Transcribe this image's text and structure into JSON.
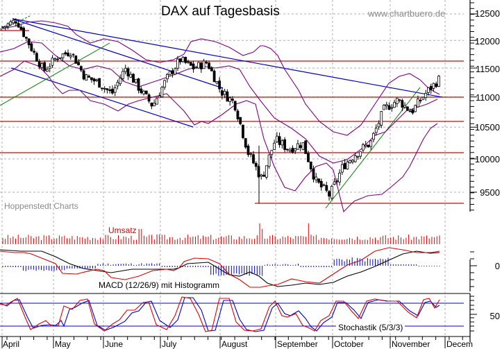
{
  "chart_data": {
    "type": "candlestick",
    "title": "DAX auf Tagesbasis",
    "watermark": "www.chartbuero.de",
    "source": "Hoppenstedt Charts",
    "xlabel": "",
    "ylabel": "",
    "grid": true,
    "price_axis": {
      "ticks": [
        12500,
        12000,
        11500,
        11000,
        10500,
        10000,
        9500
      ],
      "ylim": [
        9150,
        12700
      ],
      "scale": "log"
    },
    "months": [
      "April",
      "May",
      "June",
      "July",
      "August",
      "September",
      "October",
      "November",
      "Decem"
    ],
    "horizontal_levels": [
      11630,
      11000,
      10600,
      10100,
      9340
    ],
    "price_series_approx": {
      "description": "Approximate closing levels read off the chart, roughly weekly",
      "points": [
        {
          "month": "April",
          "close": 12250
        },
        {
          "month": "April",
          "close": 12380
        },
        {
          "month": "April",
          "close": 11900
        },
        {
          "month": "May",
          "close": 11450
        },
        {
          "month": "May",
          "close": 11700
        },
        {
          "month": "May",
          "close": 11800
        },
        {
          "month": "May",
          "close": 11350
        },
        {
          "month": "June",
          "close": 11250
        },
        {
          "month": "June",
          "close": 11050
        },
        {
          "month": "June",
          "close": 11500
        },
        {
          "month": "June",
          "close": 11150
        },
        {
          "month": "July",
          "close": 10850
        },
        {
          "month": "July",
          "close": 11300
        },
        {
          "month": "July",
          "close": 11650
        },
        {
          "month": "July",
          "close": 11500
        },
        {
          "month": "August",
          "close": 11600
        },
        {
          "month": "August",
          "close": 11100
        },
        {
          "month": "August",
          "close": 10900
        },
        {
          "month": "August",
          "close": 10100
        },
        {
          "month": "August",
          "close": 9700
        },
        {
          "month": "September",
          "close": 10300
        },
        {
          "month": "September",
          "close": 10150
        },
        {
          "month": "September",
          "close": 10250
        },
        {
          "month": "September",
          "close": 9650
        },
        {
          "month": "September",
          "close": 9450
        },
        {
          "month": "October",
          "close": 9900
        },
        {
          "month": "October",
          "close": 10100
        },
        {
          "month": "October",
          "close": 10250
        },
        {
          "month": "October",
          "close": 10800
        },
        {
          "month": "November",
          "close": 10950
        },
        {
          "month": "November",
          "close": 10750
        },
        {
          "month": "November",
          "close": 11050
        },
        {
          "month": "November",
          "close": 11300
        }
      ]
    },
    "indicators": [
      {
        "name": "Bollinger Bands",
        "color": "#800080"
      },
      {
        "name": "Umsatz",
        "type": "bar",
        "color": "#e00000"
      },
      {
        "name": "MACD (12/26/9) mit Histogramm",
        "lines": [
          "MACD",
          "Signal"
        ],
        "histogram": true,
        "axis_ticks": [
          0
        ]
      },
      {
        "name": "Stochastik (5/3/3)",
        "lines": [
          "%K",
          "%D"
        ],
        "axis_ticks": [
          50
        ],
        "bands": [
          80,
          20
        ]
      }
    ],
    "trendlines": [
      {
        "color": "#0000cc",
        "desc": "long downtrend from April high to November"
      },
      {
        "color": "#0000cc",
        "desc": "downtrend channel upper"
      },
      {
        "color": "#0000cc",
        "desc": "downtrend channel lower"
      },
      {
        "color": "#008000",
        "desc": "uptrend April-May"
      },
      {
        "color": "#008000",
        "desc": "uptrend from September low"
      }
    ]
  },
  "labels": {
    "title": "DAX auf Tagesbasis",
    "watermark": "www.chartbuero.de",
    "source": "Hoppenstedt Charts",
    "umsatz": "Umsatz",
    "macd": "MACD (12/26/9) mit Histogramm",
    "stoch": "Stochastik (5/3/3)",
    "macd_zero": "0",
    "stoch_mid": "50",
    "y12500": "12500",
    "y12000": "12000",
    "y11500": "11500",
    "y11000": "11000",
    "y10500": "10500",
    "y10000": "10000",
    "y9500": "9500",
    "m_april": "April",
    "m_may": "May",
    "m_june": "June",
    "m_july": "July",
    "m_august": "August",
    "m_september": "September",
    "m_october": "October",
    "m_november": "November",
    "m_december": "Decem"
  },
  "colors": {
    "levels": "#e00000",
    "trend_down": "#0000cc",
    "trend_up": "#008000",
    "bollinger": "#800080",
    "volume": "#e00000",
    "macd_line": "#000000",
    "signal_line": "#e00000",
    "histogram": "#0000cc",
    "stoch_k": "#e00000",
    "stoch_d": "#0000cc"
  }
}
